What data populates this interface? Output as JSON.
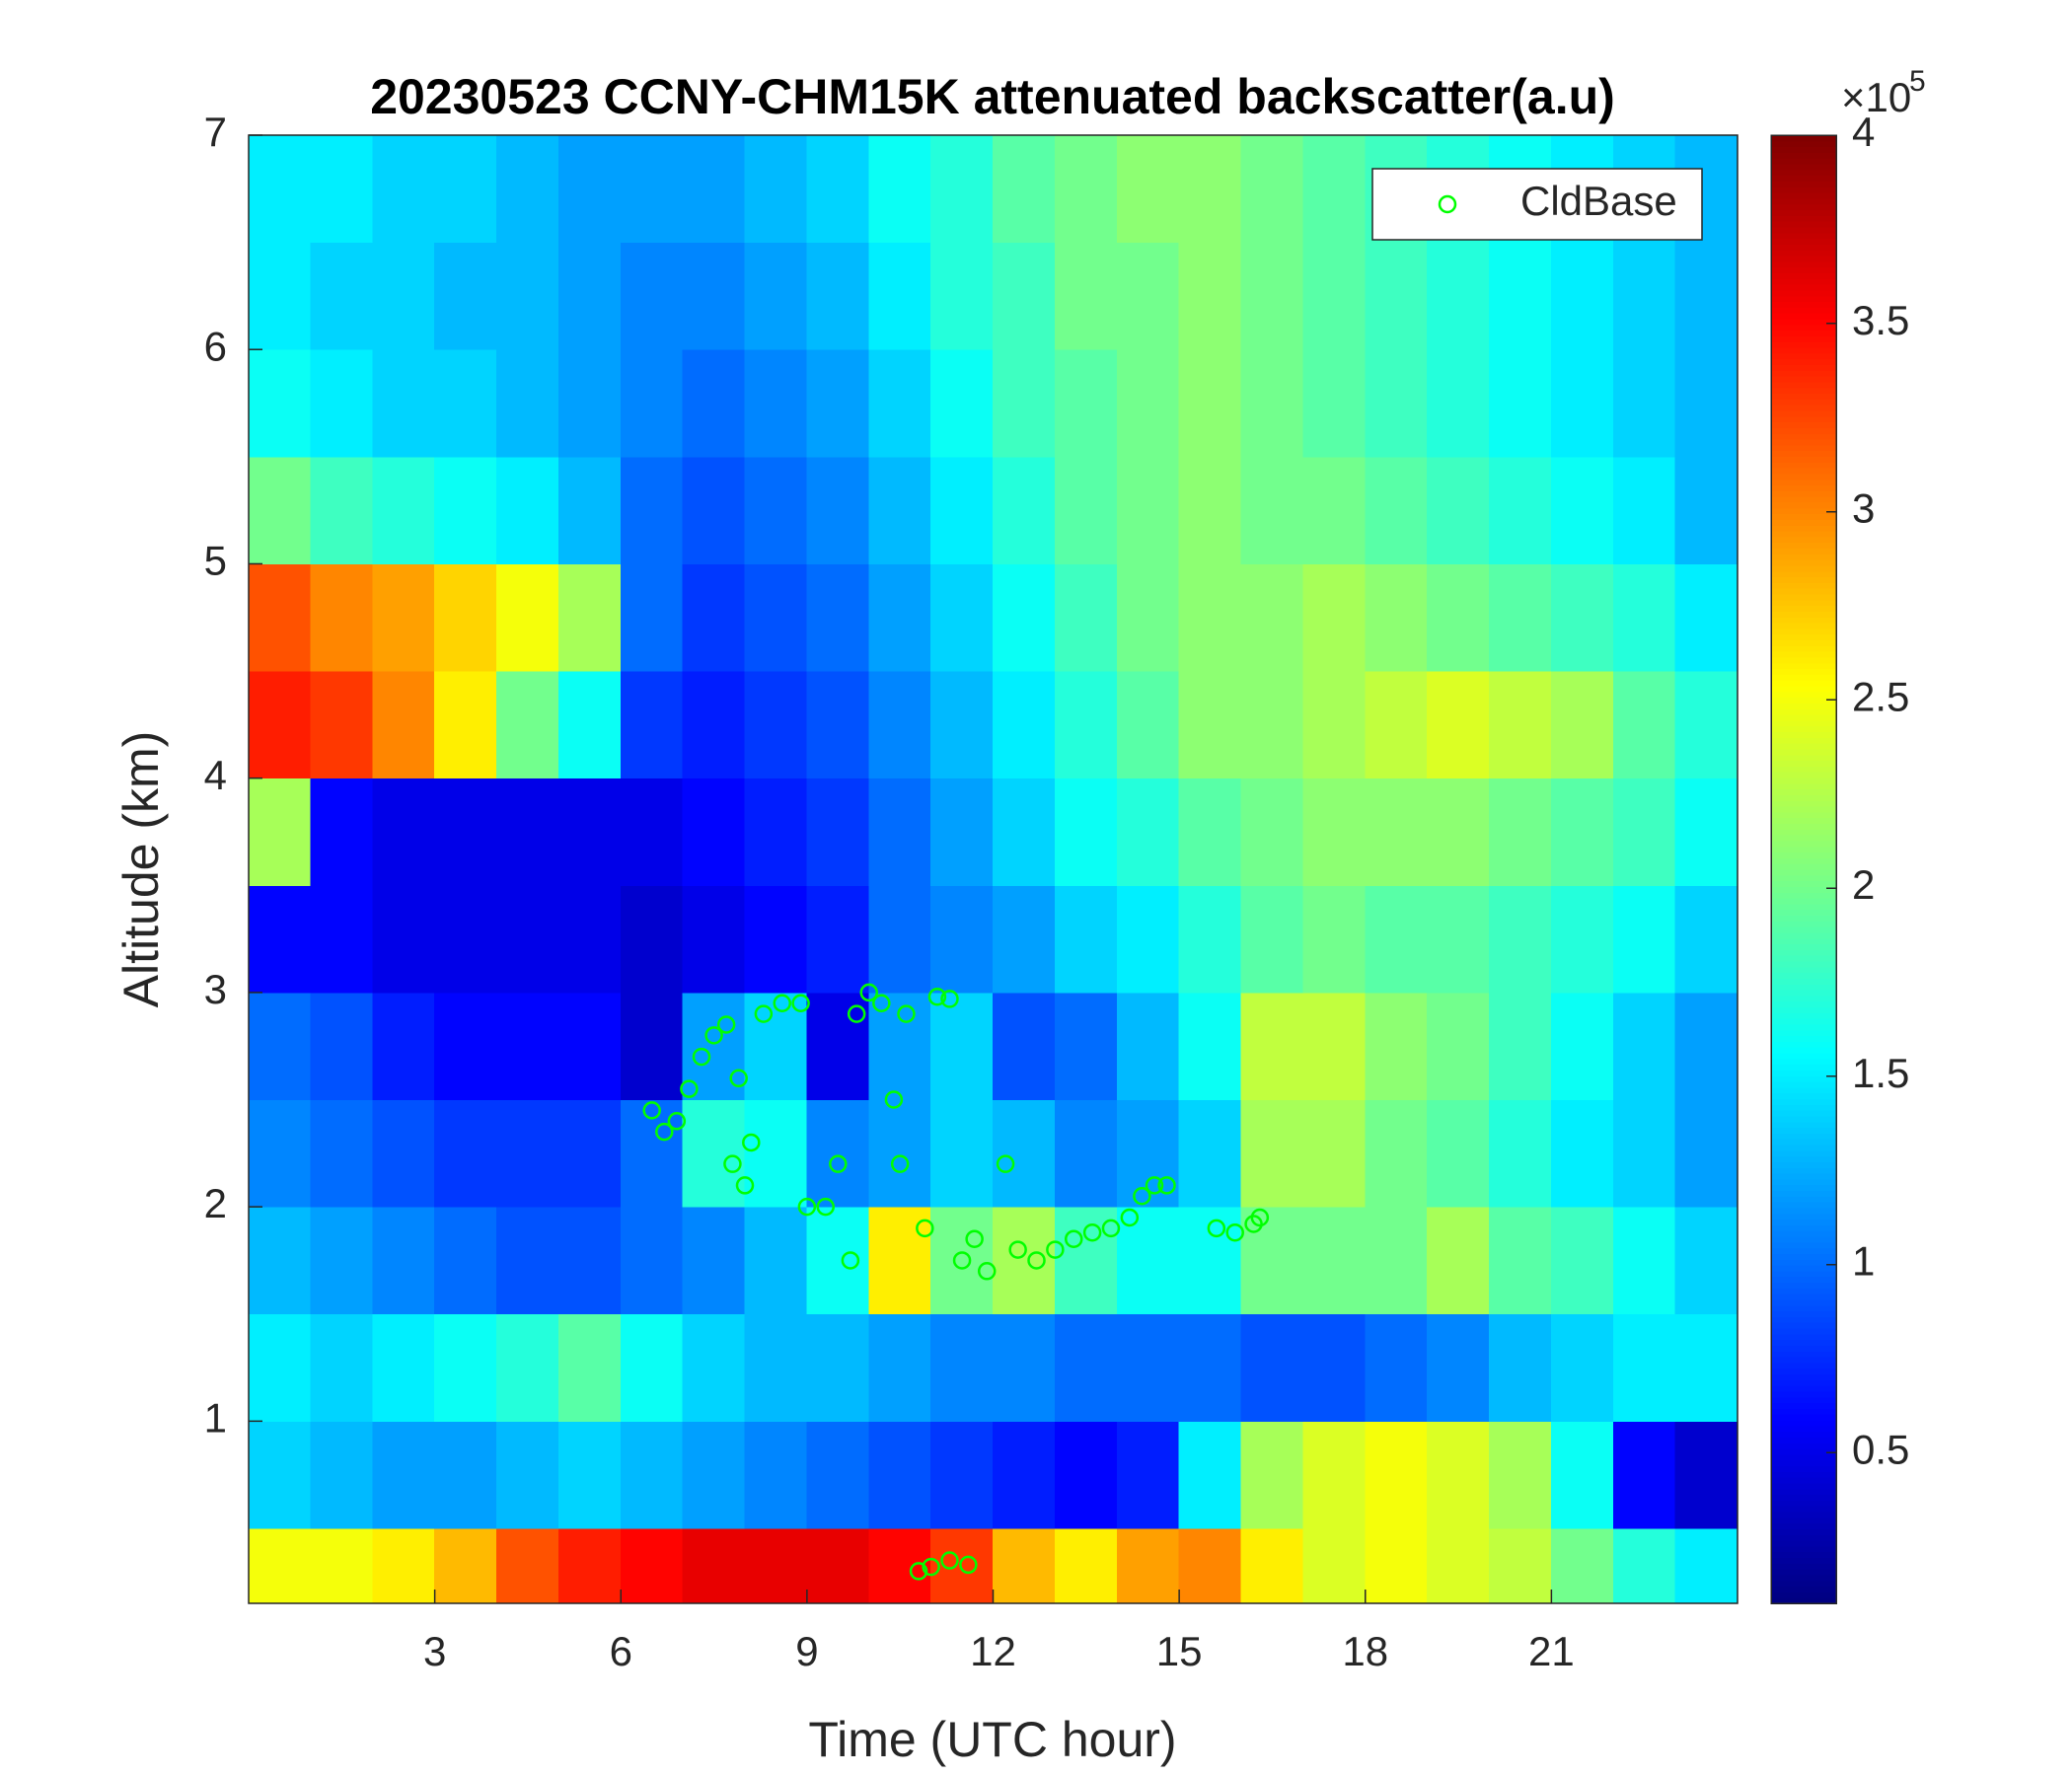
{
  "chart_data": {
    "type": "heatmap",
    "title": "20230523 CCNY-CHM15K attenuated backscatter(a.u)",
    "xlabel": "Time (UTC hour)",
    "ylabel": "Altitude (km)",
    "xlim": [
      0,
      24
    ],
    "ylim": [
      0.15,
      7
    ],
    "xticks": [
      3,
      6,
      9,
      12,
      15,
      18,
      21
    ],
    "yticks": [
      1,
      2,
      3,
      4,
      5,
      6,
      7
    ],
    "xbins": [
      0,
      1,
      2,
      3,
      4,
      5,
      6,
      7,
      8,
      9,
      10,
      11,
      12,
      13,
      14,
      15,
      16,
      17,
      18,
      19,
      20,
      21,
      22,
      23,
      24
    ],
    "ybins": [
      0.15,
      0.5,
      1,
      1.5,
      2,
      2.5,
      3,
      3.5,
      4,
      4.5,
      5,
      5.5,
      6,
      6.5,
      7
    ],
    "values": [
      [
        2.5,
        2.5,
        2.6,
        2.8,
        3.2,
        3.4,
        3.5,
        3.6,
        3.6,
        3.6,
        3.5,
        3.3,
        2.8,
        2.6,
        2.9,
        3.0,
        2.6,
        2.4,
        2.5,
        2.4,
        2.3,
        2.0,
        1.7,
        1.5
      ],
      [
        1.4,
        1.3,
        1.2,
        1.2,
        1.3,
        1.4,
        1.3,
        1.2,
        1.1,
        1.0,
        0.9,
        0.8,
        0.7,
        0.6,
        0.7,
        1.5,
        2.2,
        2.4,
        2.5,
        2.4,
        2.2,
        1.6,
        0.6,
        0.4
      ],
      [
        1.5,
        1.4,
        1.5,
        1.6,
        1.7,
        1.9,
        1.6,
        1.4,
        1.3,
        1.3,
        1.2,
        1.1,
        1.1,
        1.0,
        1.0,
        1.0,
        0.9,
        0.9,
        1.0,
        1.1,
        1.3,
        1.4,
        1.5,
        1.5
      ],
      [
        1.3,
        1.2,
        1.1,
        1.0,
        0.9,
        0.9,
        1.0,
        1.1,
        1.3,
        1.6,
        2.6,
        2.0,
        2.2,
        1.8,
        1.6,
        1.6,
        2.0,
        2.0,
        2.0,
        2.2,
        1.9,
        1.8,
        1.6,
        1.4
      ],
      [
        1.1,
        1.0,
        0.9,
        0.8,
        0.8,
        0.8,
        1.0,
        1.7,
        1.6,
        1.1,
        1.2,
        1.4,
        1.3,
        1.1,
        1.2,
        1.4,
        2.2,
        2.2,
        2.0,
        1.9,
        1.7,
        1.5,
        1.4,
        1.2
      ],
      [
        1.0,
        0.9,
        0.7,
        0.6,
        0.6,
        0.6,
        0.4,
        1.2,
        1.4,
        0.5,
        1.2,
        1.4,
        0.9,
        1.0,
        1.3,
        1.6,
        2.3,
        2.3,
        2.1,
        2.0,
        1.8,
        1.6,
        1.4,
        1.2
      ],
      [
        0.6,
        0.6,
        0.5,
        0.5,
        0.5,
        0.5,
        0.4,
        0.5,
        0.6,
        0.7,
        1.0,
        1.1,
        1.2,
        1.4,
        1.5,
        1.7,
        1.9,
        2.0,
        1.9,
        1.9,
        1.8,
        1.7,
        1.6,
        1.4
      ],
      [
        2.2,
        0.6,
        0.5,
        0.5,
        0.5,
        0.5,
        0.5,
        0.6,
        0.7,
        0.8,
        1.0,
        1.2,
        1.4,
        1.6,
        1.7,
        1.9,
        2.0,
        2.1,
        2.1,
        2.1,
        2.0,
        1.9,
        1.8,
        1.6
      ],
      [
        3.4,
        3.3,
        3.0,
        2.6,
        2.0,
        1.6,
        0.8,
        0.7,
        0.8,
        0.9,
        1.1,
        1.3,
        1.5,
        1.7,
        1.9,
        2.1,
        2.1,
        2.2,
        2.3,
        2.4,
        2.3,
        2.2,
        1.9,
        1.7
      ],
      [
        3.2,
        3.0,
        2.9,
        2.7,
        2.5,
        2.2,
        1.0,
        0.8,
        0.9,
        1.0,
        1.2,
        1.4,
        1.6,
        1.8,
        2.0,
        2.1,
        2.1,
        2.2,
        2.1,
        2.0,
        1.9,
        1.8,
        1.7,
        1.5
      ],
      [
        2.0,
        1.8,
        1.7,
        1.6,
        1.5,
        1.3,
        1.0,
        0.9,
        1.0,
        1.1,
        1.3,
        1.5,
        1.7,
        1.9,
        2.0,
        2.1,
        2.0,
        2.0,
        1.9,
        1.8,
        1.7,
        1.6,
        1.5,
        1.3
      ],
      [
        1.6,
        1.5,
        1.4,
        1.4,
        1.3,
        1.2,
        1.1,
        1.0,
        1.1,
        1.2,
        1.4,
        1.6,
        1.8,
        1.9,
        2.0,
        2.1,
        2.0,
        1.9,
        1.8,
        1.7,
        1.6,
        1.5,
        1.4,
        1.3
      ],
      [
        1.5,
        1.4,
        1.4,
        1.3,
        1.3,
        1.2,
        1.1,
        1.1,
        1.2,
        1.3,
        1.5,
        1.7,
        1.8,
        2.0,
        2.0,
        2.1,
        2.0,
        1.9,
        1.8,
        1.7,
        1.6,
        1.5,
        1.4,
        1.3
      ],
      [
        1.5,
        1.5,
        1.4,
        1.4,
        1.3,
        1.2,
        1.2,
        1.2,
        1.3,
        1.4,
        1.6,
        1.7,
        1.9,
        2.0,
        2.1,
        2.1,
        2.0,
        1.9,
        1.8,
        1.7,
        1.6,
        1.5,
        1.4,
        1.3
      ]
    ],
    "colormap": "jet",
    "clim": [
      0.1,
      4
    ],
    "cticks": [
      0.5,
      1,
      1.5,
      2,
      2.5,
      3,
      3.5,
      4
    ],
    "colorbar_multiplier_base": "×10",
    "colorbar_multiplier_exponent": 5,
    "legend": "northeast",
    "series": [
      {
        "name": "CldBase",
        "type": "scatter",
        "color": "#00ff00",
        "x": [
          6.5,
          6.7,
          6.9,
          7.1,
          7.3,
          7.5,
          7.7,
          7.9,
          8.1,
          8.3,
          8.6,
          8.9,
          9.0,
          9.3,
          9.5,
          9.7,
          9.8,
          10.0,
          10.2,
          10.4,
          10.5,
          10.6,
          10.9,
          11.1,
          11.3,
          11.5,
          11.7,
          11.9,
          12.2,
          12.4,
          12.7,
          13.0,
          13.3,
          13.6,
          13.9,
          14.2,
          14.4,
          14.6,
          14.8,
          15.6,
          15.9,
          16.2,
          16.3,
          10.8,
          11.0,
          11.3,
          11.6,
          8.0,
          7.8
        ],
        "y": [
          2.45,
          2.35,
          2.4,
          2.55,
          2.7,
          2.8,
          2.85,
          2.6,
          2.3,
          2.9,
          2.95,
          2.95,
          2.0,
          2.0,
          2.2,
          1.75,
          2.9,
          3.0,
          2.95,
          2.5,
          2.2,
          2.9,
          1.9,
          2.98,
          2.97,
          1.75,
          1.85,
          1.7,
          2.2,
          1.8,
          1.75,
          1.8,
          1.85,
          1.88,
          1.9,
          1.95,
          2.05,
          2.1,
          2.1,
          1.9,
          1.88,
          1.92,
          1.95,
          0.3,
          0.32,
          0.35,
          0.33,
          2.1,
          2.2
        ]
      }
    ]
  }
}
